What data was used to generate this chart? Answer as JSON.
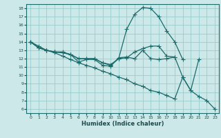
{
  "xlabel": "Humidex (Indice chaleur)",
  "background_color": "#cce8e8",
  "grid_color": "#99cccc",
  "line_color": "#1a6b6b",
  "xlim": [
    -0.5,
    23.5
  ],
  "ylim": [
    5.5,
    18.5
  ],
  "xticks": [
    0,
    1,
    2,
    3,
    4,
    5,
    6,
    7,
    8,
    9,
    10,
    11,
    12,
    13,
    14,
    15,
    16,
    17,
    18,
    19,
    20,
    21,
    22,
    23
  ],
  "yticks": [
    6,
    7,
    8,
    9,
    10,
    11,
    12,
    13,
    14,
    15,
    16,
    17,
    18
  ],
  "line_peak_x": [
    0,
    1,
    2,
    3,
    4,
    5,
    6,
    7,
    8,
    9,
    10,
    11,
    12,
    13,
    14,
    15,
    16,
    17,
    18,
    19,
    20,
    21
  ],
  "line_peak_y": [
    14.0,
    13.3,
    13.0,
    12.8,
    12.7,
    12.5,
    12.0,
    12.0,
    12.0,
    11.5,
    11.2,
    12.0,
    15.5,
    17.3,
    18.1,
    18.0,
    17.0,
    15.3,
    14.0,
    11.9,
    null,
    null
  ],
  "line_flat_x": [
    0,
    1,
    2,
    3,
    4,
    5,
    6,
    7,
    8,
    9,
    10,
    11,
    12,
    13,
    14,
    15,
    16,
    17,
    18,
    19,
    20,
    21
  ],
  "line_flat_y": [
    14.0,
    13.3,
    13.0,
    12.8,
    12.8,
    12.5,
    11.6,
    11.9,
    11.9,
    11.2,
    11.1,
    12.1,
    12.2,
    12.0,
    13.0,
    12.0,
    11.9,
    12.0,
    12.2,
    null,
    null,
    null
  ],
  "line_mid_x": [
    0,
    1,
    2,
    3,
    4,
    5,
    6,
    7,
    8,
    9,
    10,
    11,
    12,
    13,
    14,
    15,
    16,
    17,
    18,
    19,
    20,
    21
  ],
  "line_mid_y": [
    14.0,
    13.3,
    13.0,
    12.8,
    12.7,
    12.5,
    12.0,
    12.0,
    12.0,
    11.5,
    11.3,
    12.0,
    12.1,
    12.8,
    13.2,
    13.5,
    13.5,
    12.3,
    12.2,
    9.8,
    8.2,
    11.9
  ],
  "line_diag_x": [
    0,
    1,
    2,
    3,
    4,
    5,
    6,
    7,
    8,
    9,
    10,
    11,
    12,
    13,
    14,
    15,
    16,
    17,
    18,
    19,
    20,
    21,
    22,
    23
  ],
  "line_diag_y": [
    14.0,
    13.5,
    13.0,
    12.7,
    12.3,
    11.9,
    11.5,
    11.2,
    10.9,
    10.5,
    10.2,
    9.8,
    9.5,
    9.0,
    8.7,
    8.2,
    8.0,
    7.6,
    7.2,
    9.8,
    8.2,
    7.5,
    7.0,
    6.0
  ]
}
